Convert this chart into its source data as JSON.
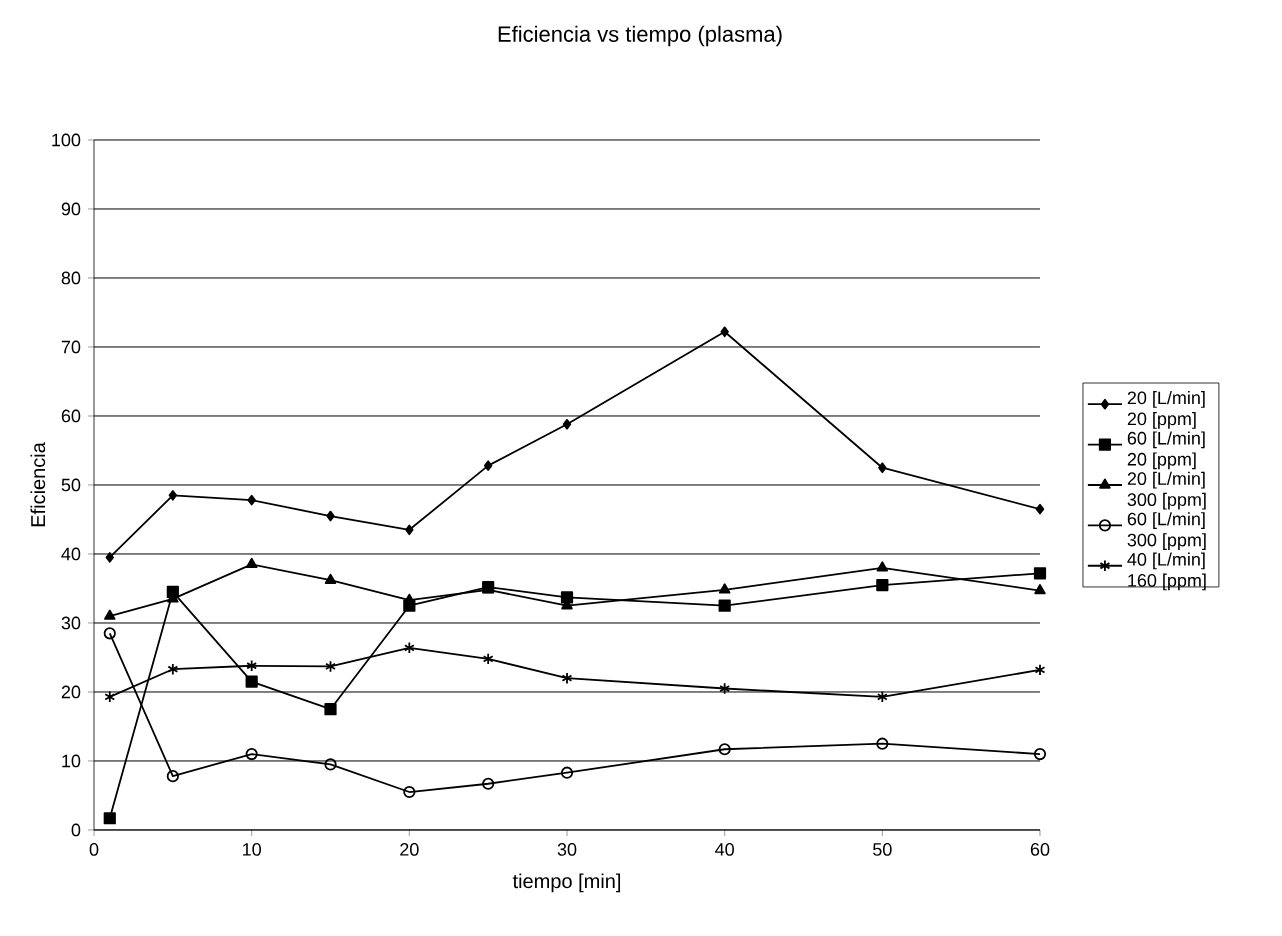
{
  "chart_data": {
    "type": "line",
    "title": "Eficiencia vs tiempo (plasma)",
    "xlabel": "tiempo [min]",
    "ylabel": "Eficiencia",
    "x": [
      1,
      5,
      10,
      15,
      20,
      25,
      30,
      40,
      50,
      60
    ],
    "series": [
      {
        "name": "20 [L/min] 20 [ppm]",
        "color": "#000000",
        "marker": "diamond",
        "values": [
          39.5,
          48.5,
          47.8,
          45.5,
          43.5,
          52.8,
          58.8,
          72.2,
          52.5,
          46.5
        ]
      },
      {
        "name": "60 [L/min] 20 [ppm]",
        "color": "#000000",
        "marker": "square",
        "values": [
          1.7,
          34.5,
          21.5,
          17.5,
          32.5,
          35.2,
          33.7,
          32.5,
          35.5,
          37.2
        ]
      },
      {
        "name": "20 [L/min] 300 [ppm]",
        "color": "#000000",
        "marker": "triangle",
        "values": [
          31,
          33.5,
          38.5,
          36.2,
          33.3,
          34.8,
          32.5,
          34.8,
          38,
          34.7
        ]
      },
      {
        "name": "60 [L/min] 300 [ppm]",
        "color": "#000000",
        "marker": "circle",
        "values": [
          28.5,
          7.8,
          11,
          9.5,
          5.5,
          6.7,
          8.3,
          11.7,
          12.5,
          11
        ]
      },
      {
        "name": "40 [L/min] 160 [ppm]",
        "color": "#000000",
        "marker": "cross",
        "values": [
          19.3,
          23.3,
          23.8,
          23.7,
          26.4,
          24.8,
          22,
          20.5,
          19.3,
          23.2
        ]
      }
    ],
    "xlim": [
      0,
      60
    ],
    "xticks": [
      0,
      10,
      20,
      30,
      40,
      50,
      60
    ],
    "ylim": [
      0,
      100
    ],
    "yticks": [
      0,
      10,
      20,
      30,
      40,
      50,
      60,
      70,
      80,
      90,
      100
    ],
    "grid": "y",
    "legend": "right",
    "line_style": "solid"
  }
}
